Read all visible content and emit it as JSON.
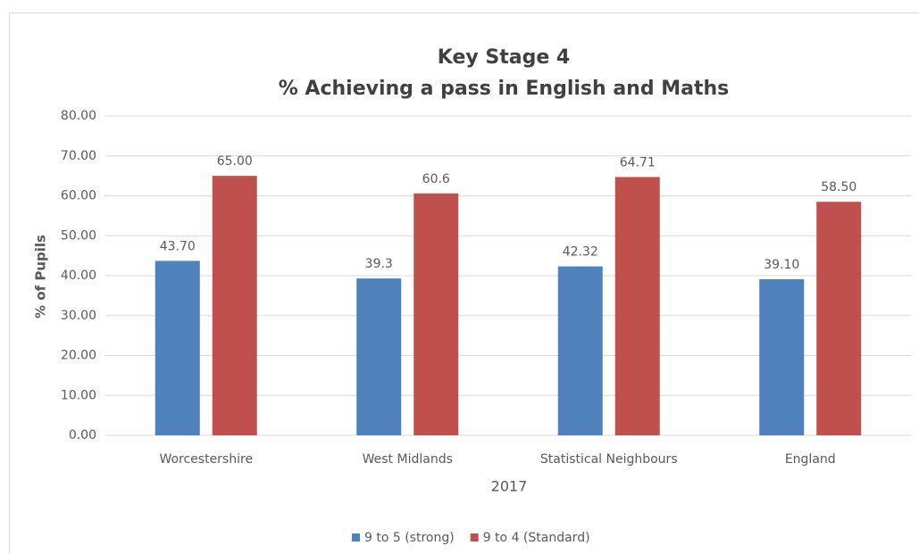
{
  "chart_data": {
    "type": "bar",
    "title": "Key Stage 4",
    "subtitle": "% Achieving a pass in English and Maths",
    "x_label": "2017",
    "y_label": "% of Pupils",
    "categories": [
      "Worcestershire",
      "West Midlands",
      "Statistical Neighbours",
      "England"
    ],
    "series": [
      {
        "name": "9 to 5 (strong)",
        "color": "#4f81bd",
        "values": [
          43.7,
          39.3,
          42.32,
          39.1
        ],
        "value_labels": [
          "43.70",
          "39.3",
          "42.32",
          "39.10"
        ]
      },
      {
        "name": "9 to 4 (Standard)",
        "color": "#c0504d",
        "values": [
          65,
          60.6,
          64.71,
          58.5
        ],
        "value_labels": [
          "65.00",
          "60.6",
          "64.71",
          "58.50"
        ]
      }
    ],
    "ylim": [
      0,
      80
    ],
    "yticks": [
      {
        "value": 0,
        "label": "0.00"
      },
      {
        "value": 10,
        "label": "10.00"
      },
      {
        "value": 20,
        "label": "20.00"
      },
      {
        "value": 30,
        "label": "30.00"
      },
      {
        "value": 40,
        "label": "40.00"
      },
      {
        "value": 50,
        "label": "50.00"
      },
      {
        "value": 60,
        "label": "60.00"
      },
      {
        "value": 70,
        "label": "70.00"
      },
      {
        "value": 80,
        "label": "80.00"
      }
    ],
    "grid": true,
    "legend": "bottom"
  }
}
